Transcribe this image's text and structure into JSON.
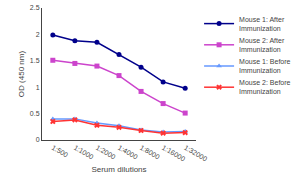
{
  "chart_data": {
    "type": "line",
    "xlabel": "Serum dilutions",
    "ylabel": "OD (450 nm)",
    "categories": [
      "1:500",
      "1:1000",
      "1:2000",
      "1:4000",
      "1:8000",
      "1:16000",
      "1:32000"
    ],
    "series": [
      {
        "name": "Mouse 1: After\nImmunization",
        "color": "#00008B",
        "marker": "circle",
        "line_style": "solid",
        "values": [
          1.99,
          1.88,
          1.85,
          1.62,
          1.38,
          1.1,
          0.98
        ]
      },
      {
        "name": "Mouse 2: After\nImmunization",
        "color": "#CC44CC",
        "marker": "square",
        "line_style": "solid",
        "values": [
          1.51,
          1.45,
          1.4,
          1.22,
          0.92,
          0.69,
          0.51
        ]
      },
      {
        "name": "Mouse 1: Before\nImmunization",
        "color": "#6699FF",
        "marker": "triangle",
        "line_style": "solid",
        "values": [
          0.4,
          0.4,
          0.32,
          0.27,
          0.19,
          0.15,
          0.16
        ]
      },
      {
        "name": "Mouse 2: Before\nImmunization",
        "color": "#FF3333",
        "marker": "x",
        "line_style": "solid",
        "values": [
          0.35,
          0.38,
          0.28,
          0.24,
          0.18,
          0.13,
          0.14
        ]
      }
    ],
    "ylim": [
      0,
      2.5
    ],
    "yticks": [
      0,
      0.5,
      1,
      1.5,
      2,
      2.5
    ],
    "grid": false,
    "legend": "upper right"
  }
}
